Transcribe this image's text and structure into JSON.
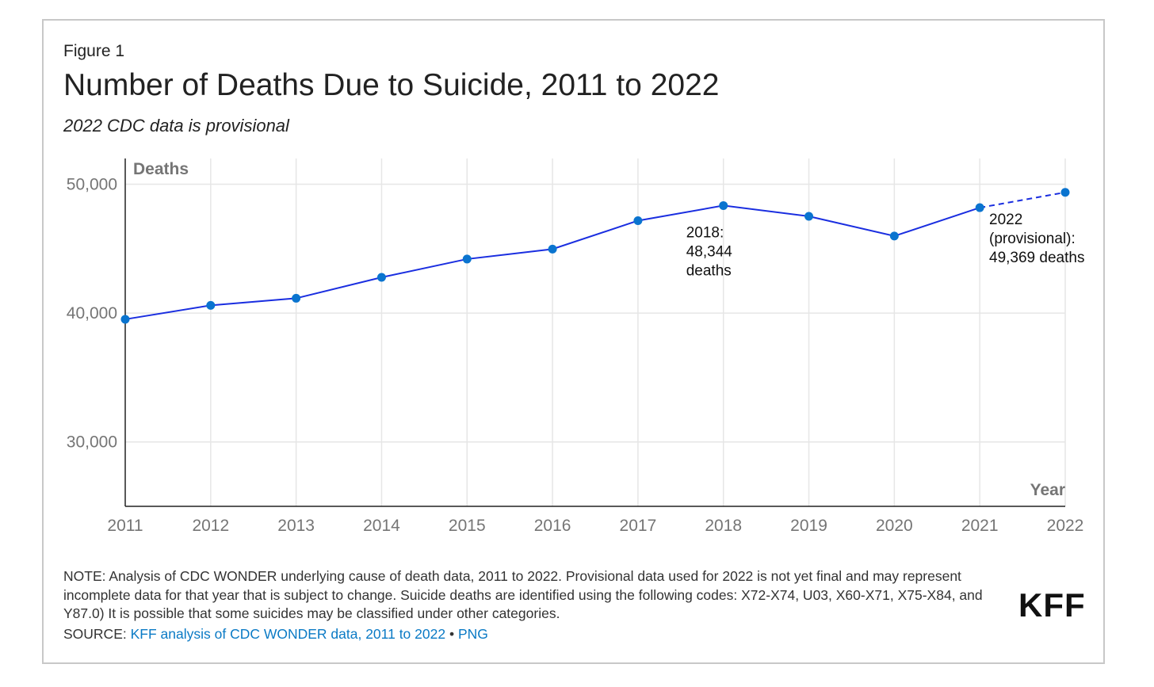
{
  "figure_label": "Figure 1",
  "title": "Number of Deaths Due to Suicide, 2011 to 2022",
  "subtitle": "2022 CDC data is provisional",
  "note": "NOTE: Analysis of CDC WONDER underlying cause of death data, 2011 to 2022. Provisional data used for 2022 is not yet final and may represent incomplete data for that year that is subject to change. Suicide deaths are identified using the following codes: X72-X74, U03, X60-X71, X75-X84, and Y87.0) It is possible that some suicides may be classified under other categories.",
  "source": {
    "prefix": "SOURCE: ",
    "link_label": "KFF analysis of CDC WONDER data, 2011 to 2022",
    "separator": " • ",
    "png_label": "PNG"
  },
  "logo": "KFF",
  "colors": {
    "line": "#1a2ee0",
    "marker": "#0a74cf",
    "grid": "#e6e6e6",
    "axis": "#222222",
    "link": "#0a7ac5"
  },
  "chart_data": {
    "type": "line",
    "ylabel": "Deaths",
    "xlabel": "Year",
    "ylim": [
      25000,
      52000
    ],
    "yticks": [
      30000,
      40000,
      50000
    ],
    "ytick_labels": [
      "30,000",
      "40,000",
      "50,000"
    ],
    "x": [
      "2011",
      "2012",
      "2013",
      "2014",
      "2015",
      "2016",
      "2017",
      "2018",
      "2019",
      "2020",
      "2021",
      "2022"
    ],
    "series": [
      {
        "name": "Deaths",
        "values": [
          39518,
          40600,
          41149,
          42773,
          44193,
          44965,
          47173,
          48344,
          47511,
          45979,
          48183,
          49369
        ]
      }
    ],
    "provisional_from_index": 10,
    "annotations": [
      {
        "index": 7,
        "lines": [
          "2018:",
          "48,344",
          "deaths"
        ]
      },
      {
        "index": 11,
        "lines": [
          "2022",
          "(provisional):",
          "49,369 deaths"
        ]
      }
    ]
  }
}
